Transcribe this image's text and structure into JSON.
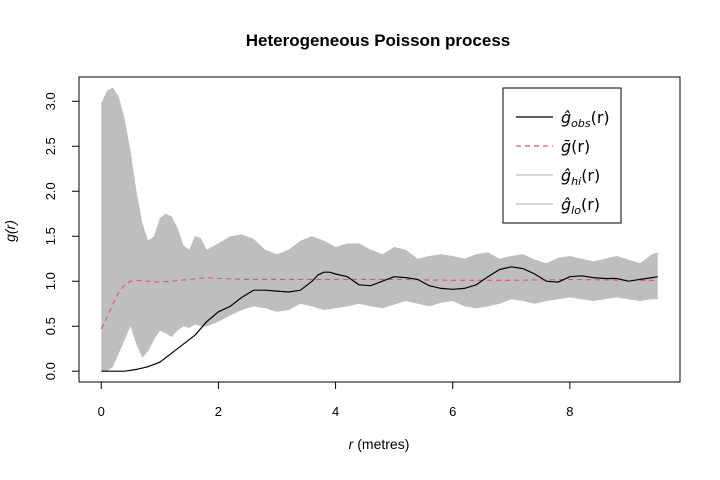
{
  "chart_data": {
    "type": "line",
    "title": "Heterogeneous Poisson process",
    "xlabel_var": "r",
    "xlabel_unit": "(metres)",
    "ylabel": "g(r)",
    "xlim": [
      0,
      9.5
    ],
    "ylim": [
      0,
      3.15
    ],
    "xticks": [
      0,
      2,
      4,
      6,
      8
    ],
    "xtick_labels": [
      "0",
      "2",
      "4",
      "6",
      "8"
    ],
    "yticks": [
      0.0,
      0.5,
      1.0,
      1.5,
      2.0,
      2.5,
      3.0
    ],
    "ytick_labels": [
      "0.0",
      "0.5",
      "1.0",
      "1.5",
      "2.0",
      "2.5",
      "3.0"
    ],
    "legend_position": "top-right",
    "series": [
      {
        "name": "ĝ_obs(r)",
        "label_main": "ĝ",
        "label_sub": "obs",
        "label_tail": "(r)",
        "color": "#000000",
        "style": "solid",
        "x": [
          0,
          0.2,
          0.4,
          0.6,
          0.8,
          1.0,
          1.2,
          1.4,
          1.6,
          1.8,
          2.0,
          2.2,
          2.4,
          2.6,
          2.8,
          3.0,
          3.2,
          3.4,
          3.6,
          3.7,
          3.8,
          3.9,
          4.0,
          4.2,
          4.4,
          4.6,
          4.8,
          5.0,
          5.2,
          5.4,
          5.6,
          5.8,
          6.0,
          6.2,
          6.4,
          6.6,
          6.8,
          7.0,
          7.2,
          7.4,
          7.6,
          7.8,
          8.0,
          8.2,
          8.4,
          8.6,
          8.8,
          9.0,
          9.2,
          9.4,
          9.5
        ],
        "values": [
          0,
          0,
          0,
          0.02,
          0.05,
          0.1,
          0.2,
          0.3,
          0.4,
          0.55,
          0.66,
          0.72,
          0.82,
          0.9,
          0.9,
          0.89,
          0.88,
          0.9,
          1.0,
          1.07,
          1.1,
          1.1,
          1.08,
          1.05,
          0.96,
          0.95,
          1.0,
          1.05,
          1.04,
          1.02,
          0.95,
          0.92,
          0.91,
          0.92,
          0.96,
          1.05,
          1.13,
          1.16,
          1.14,
          1.08,
          1.0,
          0.99,
          1.05,
          1.06,
          1.04,
          1.03,
          1.03,
          1.0,
          1.02,
          1.04,
          1.05
        ]
      },
      {
        "name": "ḡ(r)",
        "label_main": "ḡ",
        "label_sub": "",
        "label_tail": "(r)",
        "color": "#DF536B",
        "style": "dashed",
        "x": [
          0,
          0.1,
          0.2,
          0.3,
          0.4,
          0.5,
          0.6,
          0.8,
          1.0,
          1.2,
          1.5,
          1.8,
          2.0,
          2.5,
          3.0,
          4.0,
          5.0,
          6.0,
          7.0,
          8.0,
          9.0,
          9.5
        ],
        "values": [
          0.47,
          0.6,
          0.75,
          0.88,
          0.96,
          1.0,
          1.01,
          1.0,
          0.99,
          1.0,
          1.02,
          1.04,
          1.03,
          1.02,
          1.02,
          1.02,
          1.02,
          1.01,
          1.01,
          1.02,
          1.01,
          1.01
        ]
      },
      {
        "name": "ĝ_hi(r)",
        "label_main": "ĝ",
        "label_sub": "hi",
        "label_tail": "(r)",
        "color": "#BEBEBE",
        "style": "band-upper",
        "x": [
          0,
          0.1,
          0.2,
          0.3,
          0.4,
          0.5,
          0.6,
          0.7,
          0.8,
          0.9,
          1.0,
          1.1,
          1.2,
          1.3,
          1.4,
          1.5,
          1.6,
          1.7,
          1.8,
          2.0,
          2.2,
          2.4,
          2.6,
          2.8,
          3.0,
          3.2,
          3.4,
          3.6,
          3.8,
          4.0,
          4.2,
          4.4,
          4.6,
          4.8,
          5.0,
          5.2,
          5.4,
          5.6,
          5.8,
          6.0,
          6.2,
          6.4,
          6.6,
          6.8,
          7.0,
          7.2,
          7.4,
          7.6,
          7.8,
          8.0,
          8.2,
          8.4,
          8.6,
          8.8,
          9.0,
          9.2,
          9.4,
          9.5
        ],
        "values": [
          2.98,
          3.12,
          3.15,
          3.05,
          2.8,
          2.45,
          2.0,
          1.65,
          1.45,
          1.5,
          1.7,
          1.75,
          1.72,
          1.6,
          1.4,
          1.35,
          1.5,
          1.48,
          1.35,
          1.42,
          1.5,
          1.52,
          1.47,
          1.35,
          1.3,
          1.35,
          1.45,
          1.5,
          1.45,
          1.38,
          1.42,
          1.42,
          1.35,
          1.3,
          1.38,
          1.35,
          1.25,
          1.28,
          1.3,
          1.28,
          1.25,
          1.3,
          1.32,
          1.25,
          1.28,
          1.3,
          1.24,
          1.2,
          1.26,
          1.28,
          1.25,
          1.22,
          1.25,
          1.28,
          1.24,
          1.2,
          1.3,
          1.32
        ]
      },
      {
        "name": "ĝ_lo(r)",
        "label_main": "ĝ",
        "label_sub": "lo",
        "label_tail": "(r)",
        "color": "#BEBEBE",
        "style": "band-lower",
        "x": [
          0,
          0.1,
          0.2,
          0.3,
          0.4,
          0.5,
          0.6,
          0.7,
          0.8,
          0.9,
          1.0,
          1.1,
          1.2,
          1.3,
          1.4,
          1.5,
          1.6,
          1.7,
          1.8,
          2.0,
          2.2,
          2.4,
          2.6,
          2.8,
          3.0,
          3.2,
          3.4,
          3.6,
          3.8,
          4.0,
          4.2,
          4.4,
          4.6,
          4.8,
          5.0,
          5.2,
          5.4,
          5.6,
          5.8,
          6.0,
          6.2,
          6.4,
          6.6,
          6.8,
          7.0,
          7.2,
          7.4,
          7.6,
          7.8,
          8.0,
          8.2,
          8.4,
          8.6,
          8.8,
          9.0,
          9.2,
          9.4,
          9.5
        ],
        "values": [
          0.0,
          0.0,
          0.05,
          0.2,
          0.35,
          0.5,
          0.3,
          0.15,
          0.22,
          0.35,
          0.45,
          0.42,
          0.38,
          0.45,
          0.5,
          0.48,
          0.52,
          0.5,
          0.5,
          0.55,
          0.62,
          0.68,
          0.72,
          0.7,
          0.66,
          0.68,
          0.75,
          0.72,
          0.68,
          0.7,
          0.72,
          0.75,
          0.72,
          0.7,
          0.74,
          0.78,
          0.75,
          0.72,
          0.76,
          0.78,
          0.72,
          0.7,
          0.72,
          0.75,
          0.8,
          0.78,
          0.75,
          0.78,
          0.8,
          0.82,
          0.8,
          0.78,
          0.8,
          0.82,
          0.8,
          0.78,
          0.8,
          0.8
        ]
      }
    ]
  }
}
